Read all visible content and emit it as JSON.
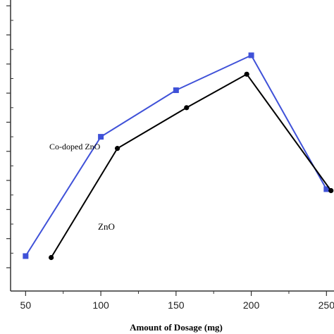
{
  "chart_data": {
    "type": "line",
    "title": "",
    "xlabel": "Amount of Dosage (mg)",
    "ylabel": "",
    "xlim": [
      40,
      255
    ],
    "ylim": [
      0,
      100
    ],
    "xticks": [
      50,
      100,
      150,
      200,
      250
    ],
    "xtick_labels": [
      "50",
      "100",
      "150",
      "200",
      "250"
    ],
    "yticks": [
      8,
      18,
      28,
      38,
      48,
      58,
      68,
      78,
      88,
      98
    ],
    "ytick_labels": [
      "",
      "",
      "",
      "",
      "",
      "",
      "",
      "",
      "",
      ""
    ],
    "grid": false,
    "legend": "none",
    "series": [
      {
        "name": "Co-doped ZnO",
        "color": "#3f51d8",
        "marker": "square",
        "x": [
          50,
          100,
          150,
          200,
          250
        ],
        "y": [
          12,
          53,
          69,
          81,
          35
        ]
      },
      {
        "name": "ZnO",
        "color": "#000000",
        "marker": "circle",
        "x": [
          67,
          111,
          157,
          197,
          253
        ],
        "y": [
          11.5,
          49,
          63,
          74.5,
          34.5
        ]
      }
    ],
    "annotations": [
      {
        "text": "Co-doped ZnO",
        "series": 0
      },
      {
        "text": "ZnO",
        "series": 1
      }
    ]
  }
}
